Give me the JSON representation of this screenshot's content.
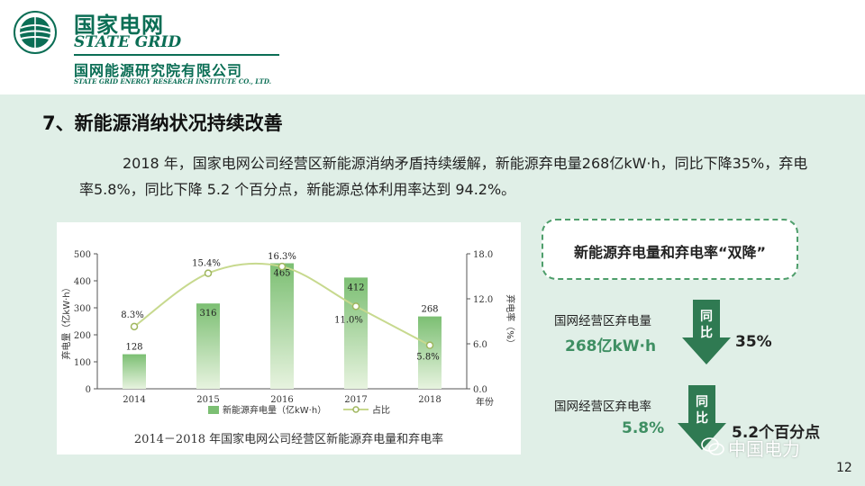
{
  "header": {
    "company_cn": "国家电网",
    "company_en": "STATE GRID",
    "institute_cn": "国网能源研究院有限公司",
    "institute_en": "STATE GRID ENERGY RESEARCH INSTITUTE CO., LTD."
  },
  "section": {
    "title": "7、新能源消纳状况持续改善",
    "paragraph": "2018 年，国家电网公司经营区新能源消纳矛盾持续缓解，新能源弃电量268亿kW·h，同比下降35%，弃电率5.8%，同比下降 5.2 个百分点，新能源总体利用率达到 94.2%。"
  },
  "chart_data": {
    "type": "bar",
    "categories": [
      "2014",
      "2015",
      "2016",
      "2017",
      "2018"
    ],
    "series": [
      {
        "name": "新能源弃电量（亿kW·h）",
        "type": "bar",
        "values": [
          128,
          316,
          465,
          412,
          268
        ]
      },
      {
        "name": "占比",
        "type": "line",
        "values": [
          8.3,
          15.4,
          16.3,
          11.0,
          5.8
        ]
      }
    ],
    "bar_labels": [
      "128",
      "316",
      "465",
      "412",
      "268"
    ],
    "line_labels": [
      "8.3%",
      "15.4%",
      "16.3%",
      "11.0%",
      "5.8%"
    ],
    "ylabel_left": "弃电量（亿kW·h）",
    "ylabel_right": "弃电率（%）",
    "xlabel": "年份",
    "ylim_left": [
      0,
      500
    ],
    "yticks_left": [
      "0",
      "100",
      "200",
      "300",
      "400",
      "500"
    ],
    "ylim_right": [
      0,
      18
    ],
    "yticks_right": [
      "0.0",
      "6.0",
      "12.0",
      "18.0"
    ],
    "caption": "2014－2018 年国家电网公司经营区新能源弃电量和弃电率",
    "bar_color": "#7cbf73",
    "line_color": "#c7d98e"
  },
  "callout": {
    "title": "新能源弃电量和弃电率“双降”"
  },
  "stat1": {
    "label": "国网经营区弃电量",
    "value": "268亿kW·h",
    "arrow_text": [
      "同",
      "比"
    ],
    "change": "35%"
  },
  "stat2": {
    "label": "国网经营区弃电率",
    "value": "5.8%",
    "arrow_text": [
      "同",
      "比"
    ],
    "change": "5.2个百分点"
  },
  "watermark": "中国电力",
  "page_number": "12",
  "colors": {
    "brand": "#0b6e55",
    "content_bg": "#e0efe7",
    "accent": "#3f8f63",
    "arrow": "#2f7a52"
  }
}
